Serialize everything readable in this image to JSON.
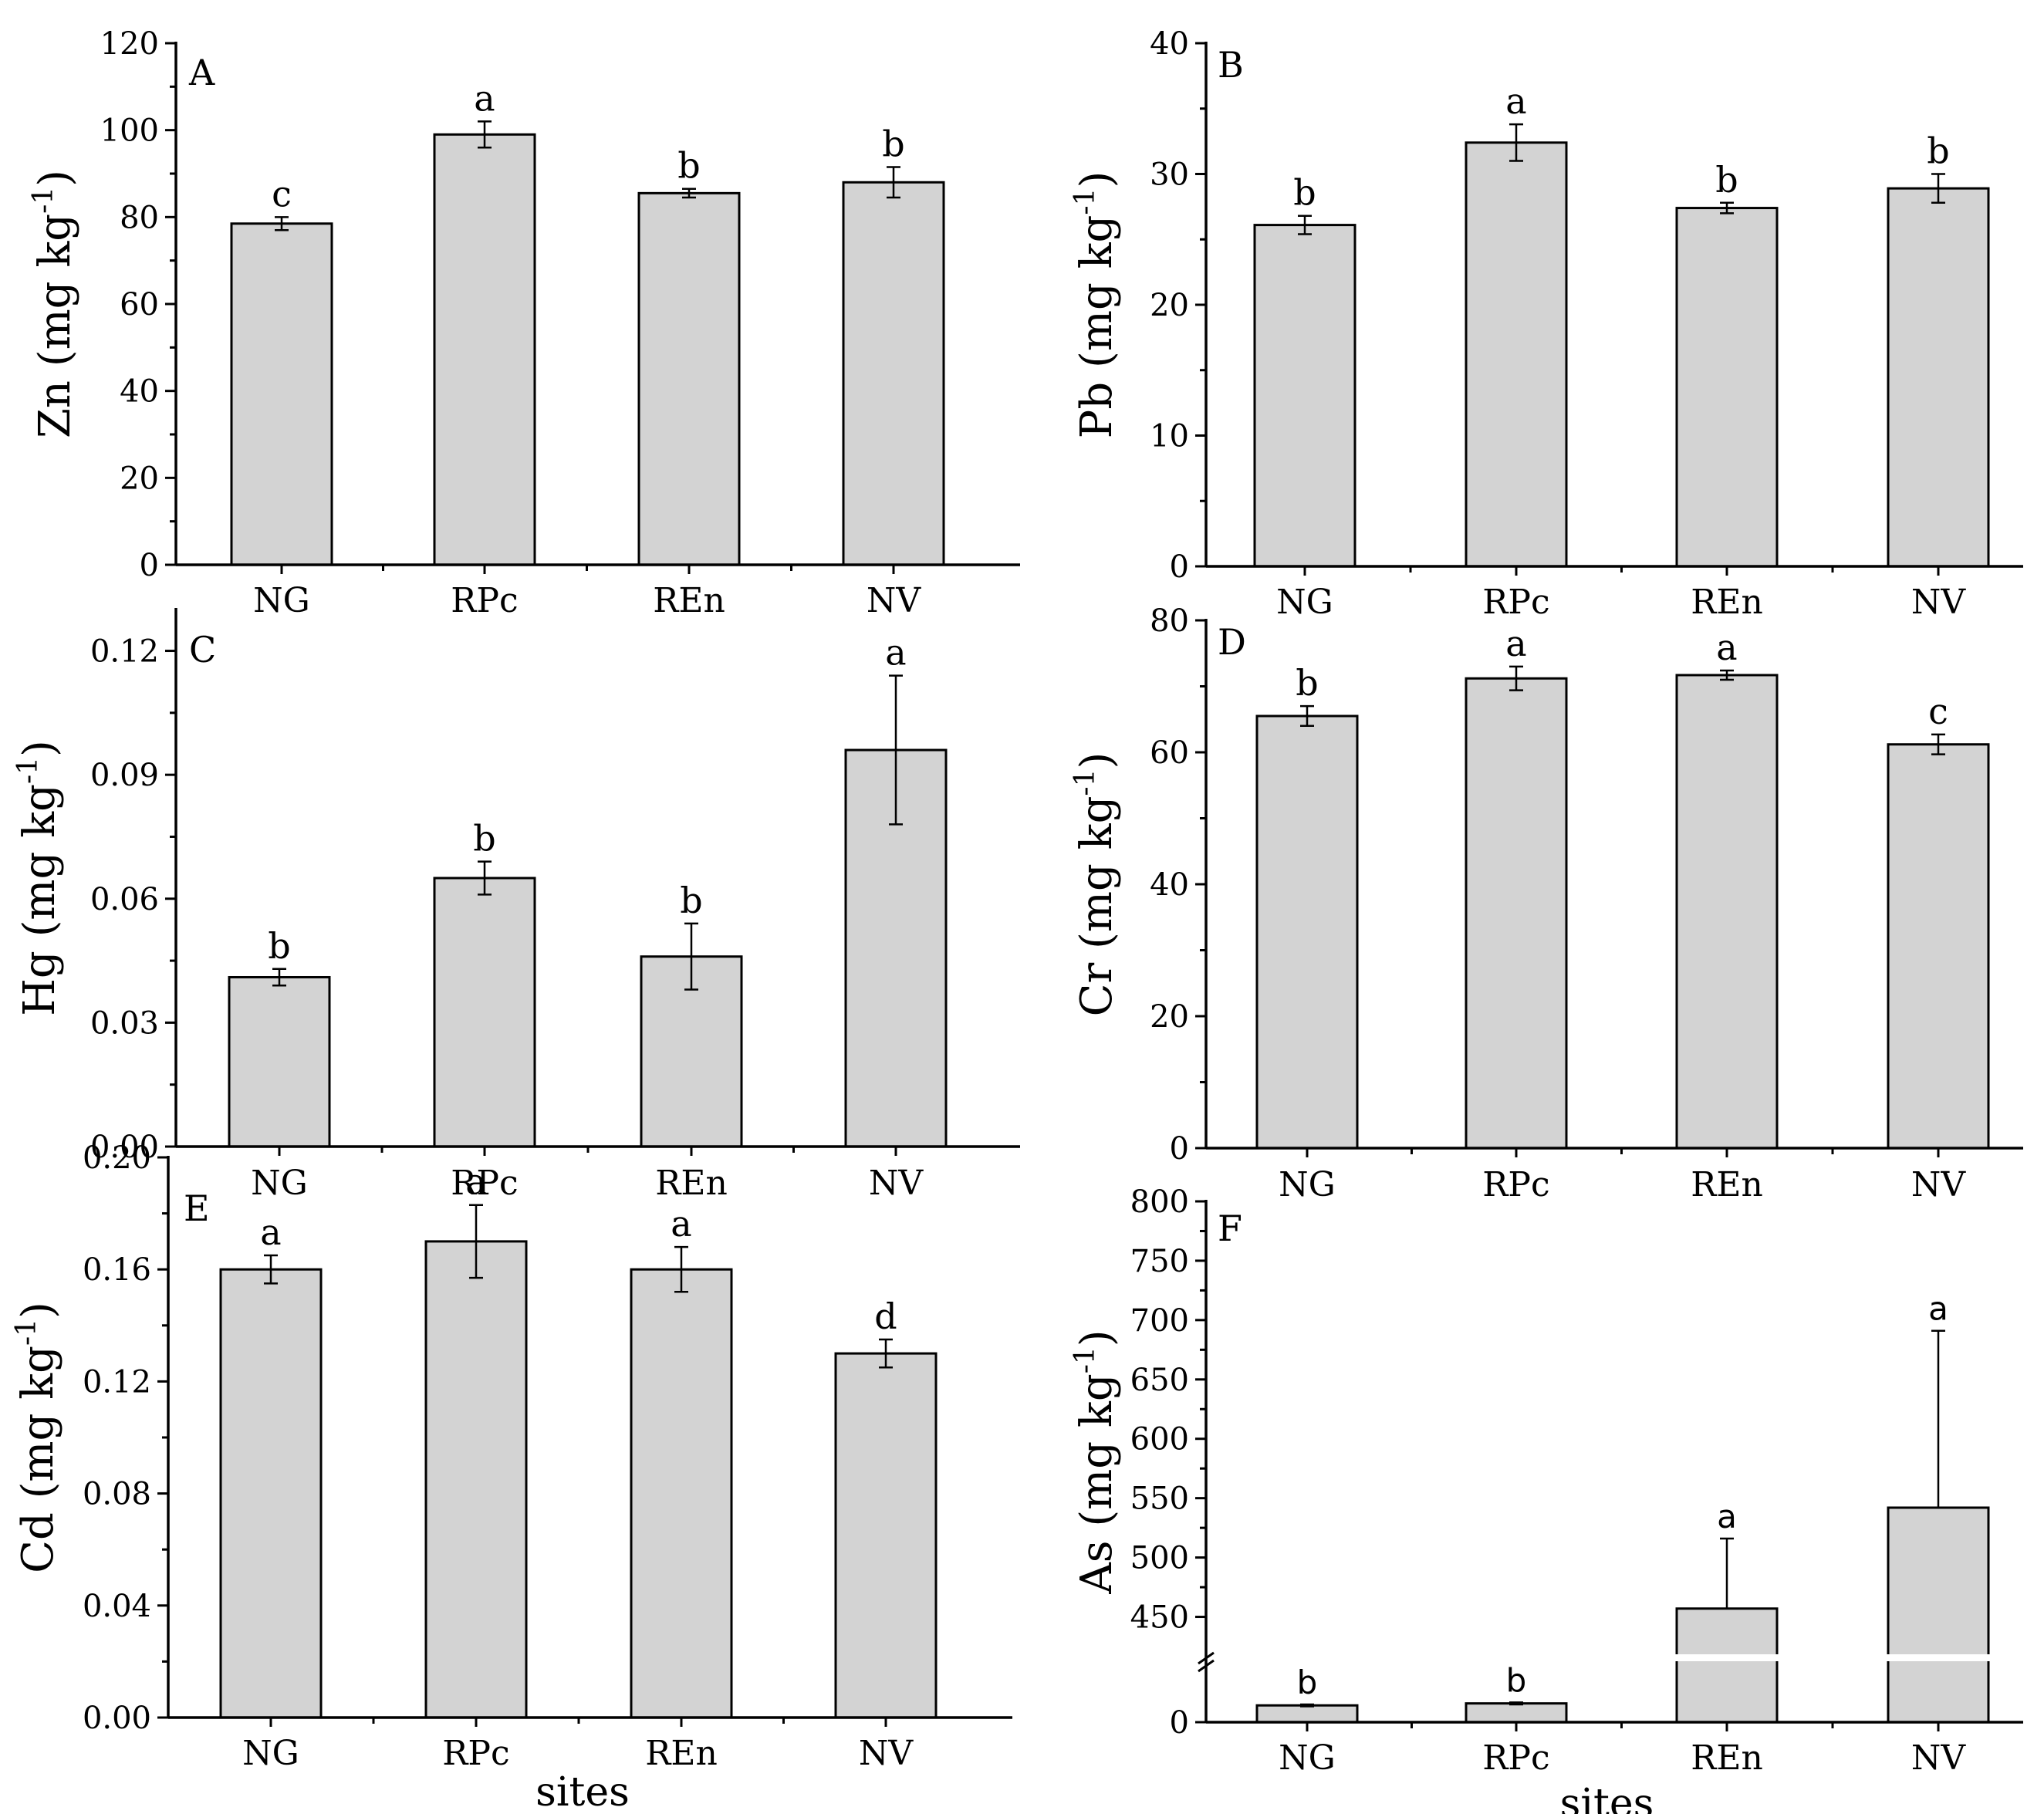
{
  "chart_data": [
    {
      "panel": "A",
      "type": "bar",
      "categories": [
        "NG",
        "RPc",
        "REn",
        "NV"
      ],
      "values": [
        78.5,
        99,
        85.5,
        88
      ],
      "errors": [
        1.5,
        3,
        1,
        3.5
      ],
      "significance": [
        "c",
        "a",
        "b",
        "b"
      ],
      "ylabel": "Zn (mg kg",
      "ylabel_sup": "-1",
      "ylabel_close": ")",
      "xlabel": "",
      "ylim": [
        0,
        120
      ],
      "yticks": [
        0,
        20,
        40,
        60,
        80,
        100,
        120
      ],
      "ytick_labels": [
        "0",
        "20",
        "40",
        "60",
        "80",
        "100",
        "120"
      ]
    },
    {
      "panel": "B",
      "type": "bar",
      "categories": [
        "NG",
        "RPc",
        "REn",
        "NV"
      ],
      "values": [
        26.1,
        32.4,
        27.4,
        28.9
      ],
      "errors": [
        0.7,
        1.4,
        0.4,
        1.1
      ],
      "significance": [
        "b",
        "a",
        "b",
        "b"
      ],
      "ylabel": "Pb (mg kg",
      "ylabel_sup": "-1",
      "ylabel_close": ")",
      "xlabel": "",
      "ylim": [
        0,
        40
      ],
      "yticks": [
        0,
        10,
        20,
        30,
        40
      ],
      "ytick_labels": [
        "0",
        "10",
        "20",
        "30",
        "40"
      ]
    },
    {
      "panel": "C",
      "type": "bar",
      "categories": [
        "NG",
        "RPc",
        "REn",
        "NV"
      ],
      "values": [
        0.041,
        0.065,
        0.046,
        0.096
      ],
      "errors": [
        0.002,
        0.004,
        0.008,
        0.018
      ],
      "significance": [
        "b",
        "b",
        "b",
        "a"
      ],
      "ylabel": "Hg (mg kg",
      "ylabel_sup": "-1",
      "ylabel_close": ")",
      "xlabel": "",
      "ylim": [
        0,
        0.13
      ],
      "yticks": [
        0,
        0.03,
        0.06,
        0.09,
        0.12
      ],
      "ytick_labels": [
        "0.00",
        "0.03",
        "0.06",
        "0.09",
        "0.12"
      ]
    },
    {
      "panel": "D",
      "type": "bar",
      "categories": [
        "NG",
        "RPc",
        "REn",
        "NV"
      ],
      "values": [
        65.5,
        71.2,
        71.7,
        61.2
      ],
      "errors": [
        1.5,
        1.8,
        0.7,
        1.5
      ],
      "significance": [
        "b",
        "a",
        "a",
        "c"
      ],
      "ylabel": "Cr (mg kg",
      "ylabel_sup": "-1",
      "ylabel_close": ")",
      "xlabel": "",
      "ylim": [
        0,
        80
      ],
      "yticks": [
        0,
        20,
        40,
        60,
        80
      ],
      "ytick_labels": [
        "0",
        "20",
        "40",
        "60",
        "80"
      ]
    },
    {
      "panel": "E",
      "type": "bar",
      "categories": [
        "NG",
        "RPc",
        "REn",
        "NV"
      ],
      "values": [
        0.16,
        0.17,
        0.16,
        0.13
      ],
      "errors": [
        0.005,
        0.013,
        0.008,
        0.005
      ],
      "significance": [
        "a",
        "a",
        "a",
        "d"
      ],
      "ylabel": "Cd (mg kg",
      "ylabel_sup": "-1",
      "ylabel_close": ")",
      "xlabel": "sites",
      "ylim": [
        0,
        0.2
      ],
      "yticks": [
        0,
        0.04,
        0.08,
        0.12,
        0.16,
        0.2
      ],
      "ytick_labels": [
        "0.00",
        "0.04",
        "0.08",
        "0.12",
        "0.16",
        "0.20"
      ]
    },
    {
      "panel": "F",
      "type": "bar",
      "categories": [
        "NG",
        "RPc",
        "REn",
        "NV"
      ],
      "values": [
        17,
        19,
        457,
        542
      ],
      "errors": [
        1,
        1,
        59,
        149
      ],
      "significance": [
        "b",
        "b",
        "a",
        "a"
      ],
      "ylabel": "As (mg kg",
      "ylabel_sup": "-1",
      "ylabel_close": ")",
      "xlabel": "sites",
      "axis_break": {
        "lower": [
          0,
          50
        ],
        "upper": [
          425,
          800
        ]
      },
      "yticks": [
        0,
        450,
        500,
        550,
        600,
        650,
        700,
        750,
        800
      ],
      "ytick_labels": [
        "0",
        "450",
        "500",
        "550",
        "600",
        "650",
        "700",
        "750",
        "800"
      ]
    }
  ]
}
